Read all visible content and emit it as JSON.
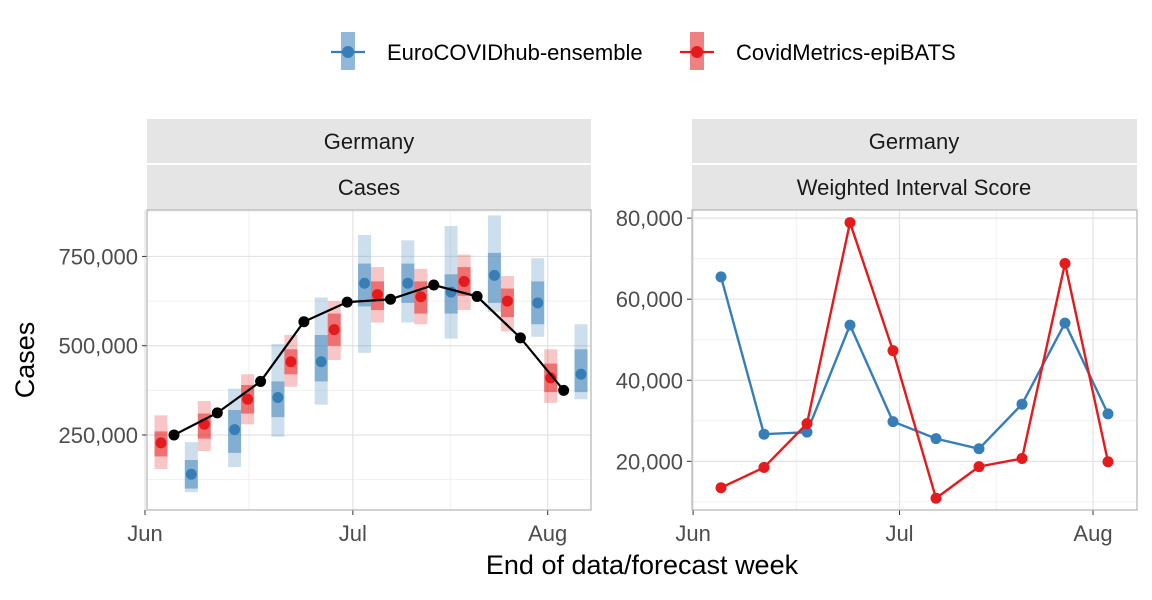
{
  "legend": {
    "items": [
      {
        "name": "EuroCOVIDhub-ensemble",
        "color": "#377EB8"
      },
      {
        "name": "CovidMetrics-epiBATS",
        "color": "#E41A1C"
      }
    ]
  },
  "xlabel": "End of data/forecast week",
  "chart_data": [
    {
      "type": "line",
      "panel": "left",
      "strip_top": "Germany",
      "strip_bottom": "Cases",
      "ylabel": "Cases",
      "y_ticks": [
        250000,
        500000,
        750000
      ],
      "y_tick_labels": [
        "250,000",
        "500,000",
        "750,000"
      ],
      "x_tick_labels": [
        "Jun",
        "Jul",
        "Aug"
      ],
      "observed": {
        "x": [
          0.6,
          1.6,
          2.6,
          3.6,
          4.6,
          5.6,
          6.6,
          7.6,
          8.6,
          9.6
        ],
        "values": [
          250000,
          312000,
          400000,
          567000,
          622000,
          630000,
          670000,
          638000,
          522000,
          375000
        ]
      },
      "series": [
        {
          "name": "EuroCOVIDhub-ensemble",
          "x": [
            1.0,
            2.0,
            3.0,
            4.0,
            5.0,
            6.0,
            7.0,
            8.0,
            9.0,
            10.0
          ],
          "values": [
            140000,
            265000,
            355000,
            455000,
            675000,
            675000,
            650000,
            697000,
            620000,
            420000
          ],
          "inner": [
            [
              100000,
              180000
            ],
            [
              200000,
              320000
            ],
            [
              300000,
              400000
            ],
            [
              400000,
              530000
            ],
            [
              610000,
              730000
            ],
            [
              620000,
              730000
            ],
            [
              590000,
              700000
            ],
            [
              620000,
              760000
            ],
            [
              560000,
              680000
            ],
            [
              370000,
              490000
            ]
          ],
          "outer": [
            [
              90000,
              230000
            ],
            [
              160000,
              380000
            ],
            [
              245000,
              505000
            ],
            [
              335000,
              635000
            ],
            [
              480000,
              810000
            ],
            [
              565000,
              795000
            ],
            [
              520000,
              835000
            ],
            [
              595000,
              865000
            ],
            [
              525000,
              745000
            ],
            [
              350000,
              560000
            ]
          ]
        },
        {
          "name": "CovidMetrics-epiBATS",
          "x": [
            0.3,
            1.3,
            2.3,
            3.3,
            4.3,
            5.3,
            6.3,
            7.3,
            8.3,
            9.3
          ],
          "values": [
            228000,
            280000,
            350000,
            455000,
            545000,
            643000,
            637000,
            680000,
            625000,
            410000
          ],
          "inner": [
            [
              190000,
              260000
            ],
            [
              240000,
              310000
            ],
            [
              310000,
              390000
            ],
            [
              420000,
              490000
            ],
            [
              500000,
              590000
            ],
            [
              600000,
              680000
            ],
            [
              590000,
              680000
            ],
            [
              640000,
              720000
            ],
            [
              580000,
              660000
            ],
            [
              370000,
              450000
            ]
          ],
          "outer": [
            [
              155000,
              305000
            ],
            [
              205000,
              345000
            ],
            [
              280000,
              420000
            ],
            [
              385000,
              530000
            ],
            [
              460000,
              625000
            ],
            [
              565000,
              720000
            ],
            [
              560000,
              715000
            ],
            [
              600000,
              755000
            ],
            [
              540000,
              695000
            ],
            [
              340000,
              490000
            ]
          ]
        }
      ]
    },
    {
      "type": "line",
      "panel": "right",
      "strip_top": "Germany",
      "strip_bottom": "Weighted Interval Score",
      "y_ticks": [
        20000,
        40000,
        60000,
        80000
      ],
      "y_tick_labels": [
        "20,000",
        "40,000",
        "60,000",
        "80,000"
      ],
      "x_tick_labels": [
        "Jun",
        "Jul",
        "Aug"
      ],
      "series": [
        {
          "name": "EuroCOVIDhub-ensemble",
          "x": [
            0.3,
            1.3,
            2.3,
            3.3,
            4.3,
            5.3,
            6.3,
            7.3,
            8.3,
            9.3
          ],
          "values": [
            65500,
            26700,
            27200,
            53600,
            29800,
            25600,
            23100,
            34100,
            54100,
            31700
          ]
        },
        {
          "name": "CovidMetrics-epiBATS",
          "x": [
            0.3,
            1.3,
            2.3,
            3.3,
            4.3,
            5.3,
            6.3,
            7.3,
            8.3,
            9.3
          ],
          "values": [
            13500,
            18500,
            29300,
            78900,
            47300,
            10900,
            18700,
            20700,
            68800,
            19900
          ]
        }
      ]
    }
  ]
}
